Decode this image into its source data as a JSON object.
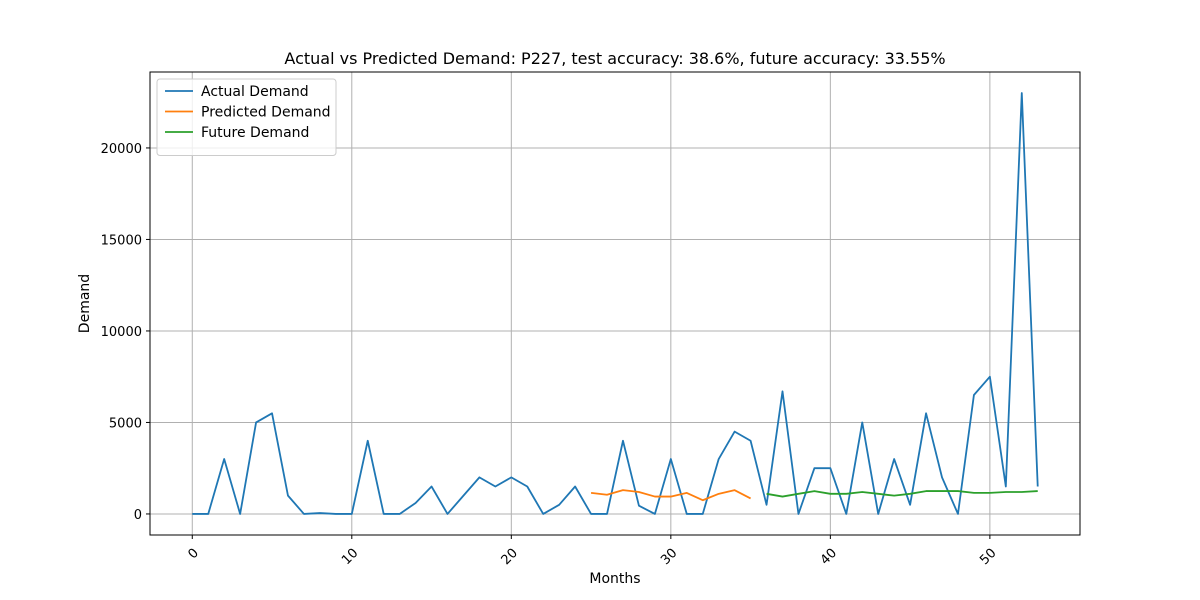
{
  "chart_data": {
    "type": "line",
    "title": "Actual vs Predicted Demand: P227, test accuracy: 38.6%, future accuracy: 33.55%",
    "xlabel": "Months",
    "ylabel": "Demand",
    "xlim": [
      -2.65,
      55.65
    ],
    "ylim": [
      -1150,
      24150
    ],
    "xticks": [
      0,
      10,
      20,
      30,
      40,
      50
    ],
    "yticks": [
      0,
      5000,
      10000,
      15000,
      20000
    ],
    "grid": true,
    "legend_position": "top-left",
    "series": [
      {
        "name": "Actual Demand",
        "color": "#1f77b4",
        "x": [
          0,
          1,
          2,
          3,
          4,
          5,
          6,
          7,
          8,
          9,
          10,
          11,
          12,
          13,
          14,
          15,
          16,
          17,
          18,
          19,
          20,
          21,
          22,
          23,
          24,
          25,
          26,
          27,
          28,
          29,
          30,
          31,
          32,
          33,
          34,
          35,
          36,
          37,
          38,
          39,
          40,
          41,
          42,
          43,
          44,
          45,
          46,
          47,
          48,
          49,
          50,
          51,
          52,
          53
        ],
        "values": [
          0,
          0,
          3000,
          0,
          5000,
          5500,
          1000,
          0,
          50,
          0,
          0,
          4000,
          0,
          0,
          600,
          1500,
          0,
          1000,
          2000,
          1500,
          2000,
          1500,
          0,
          500,
          1500,
          0,
          0,
          4000,
          450,
          0,
          3000,
          0,
          0,
          3000,
          4500,
          4000,
          500,
          6700,
          0,
          2500,
          2500,
          0,
          5000,
          0,
          3000,
          500,
          5500,
          2000,
          0,
          6500,
          7500,
          1500,
          23000,
          1500
        ]
      },
      {
        "name": "Predicted Demand",
        "color": "#ff7f0e",
        "x": [
          25,
          26,
          27,
          28,
          29,
          30,
          31,
          32,
          33,
          34,
          35
        ],
        "values": [
          1150,
          1050,
          1300,
          1200,
          950,
          950,
          1150,
          750,
          1100,
          1300,
          850
        ]
      },
      {
        "name": "Future Demand",
        "color": "#2ca02c",
        "x": [
          36,
          37,
          38,
          39,
          40,
          41,
          42,
          43,
          44,
          45,
          46,
          47,
          48,
          49,
          50,
          51,
          52,
          53
        ],
        "values": [
          1100,
          950,
          1100,
          1250,
          1100,
          1100,
          1200,
          1100,
          1000,
          1100,
          1250,
          1250,
          1250,
          1150,
          1150,
          1200,
          1200,
          1250
        ]
      }
    ]
  }
}
